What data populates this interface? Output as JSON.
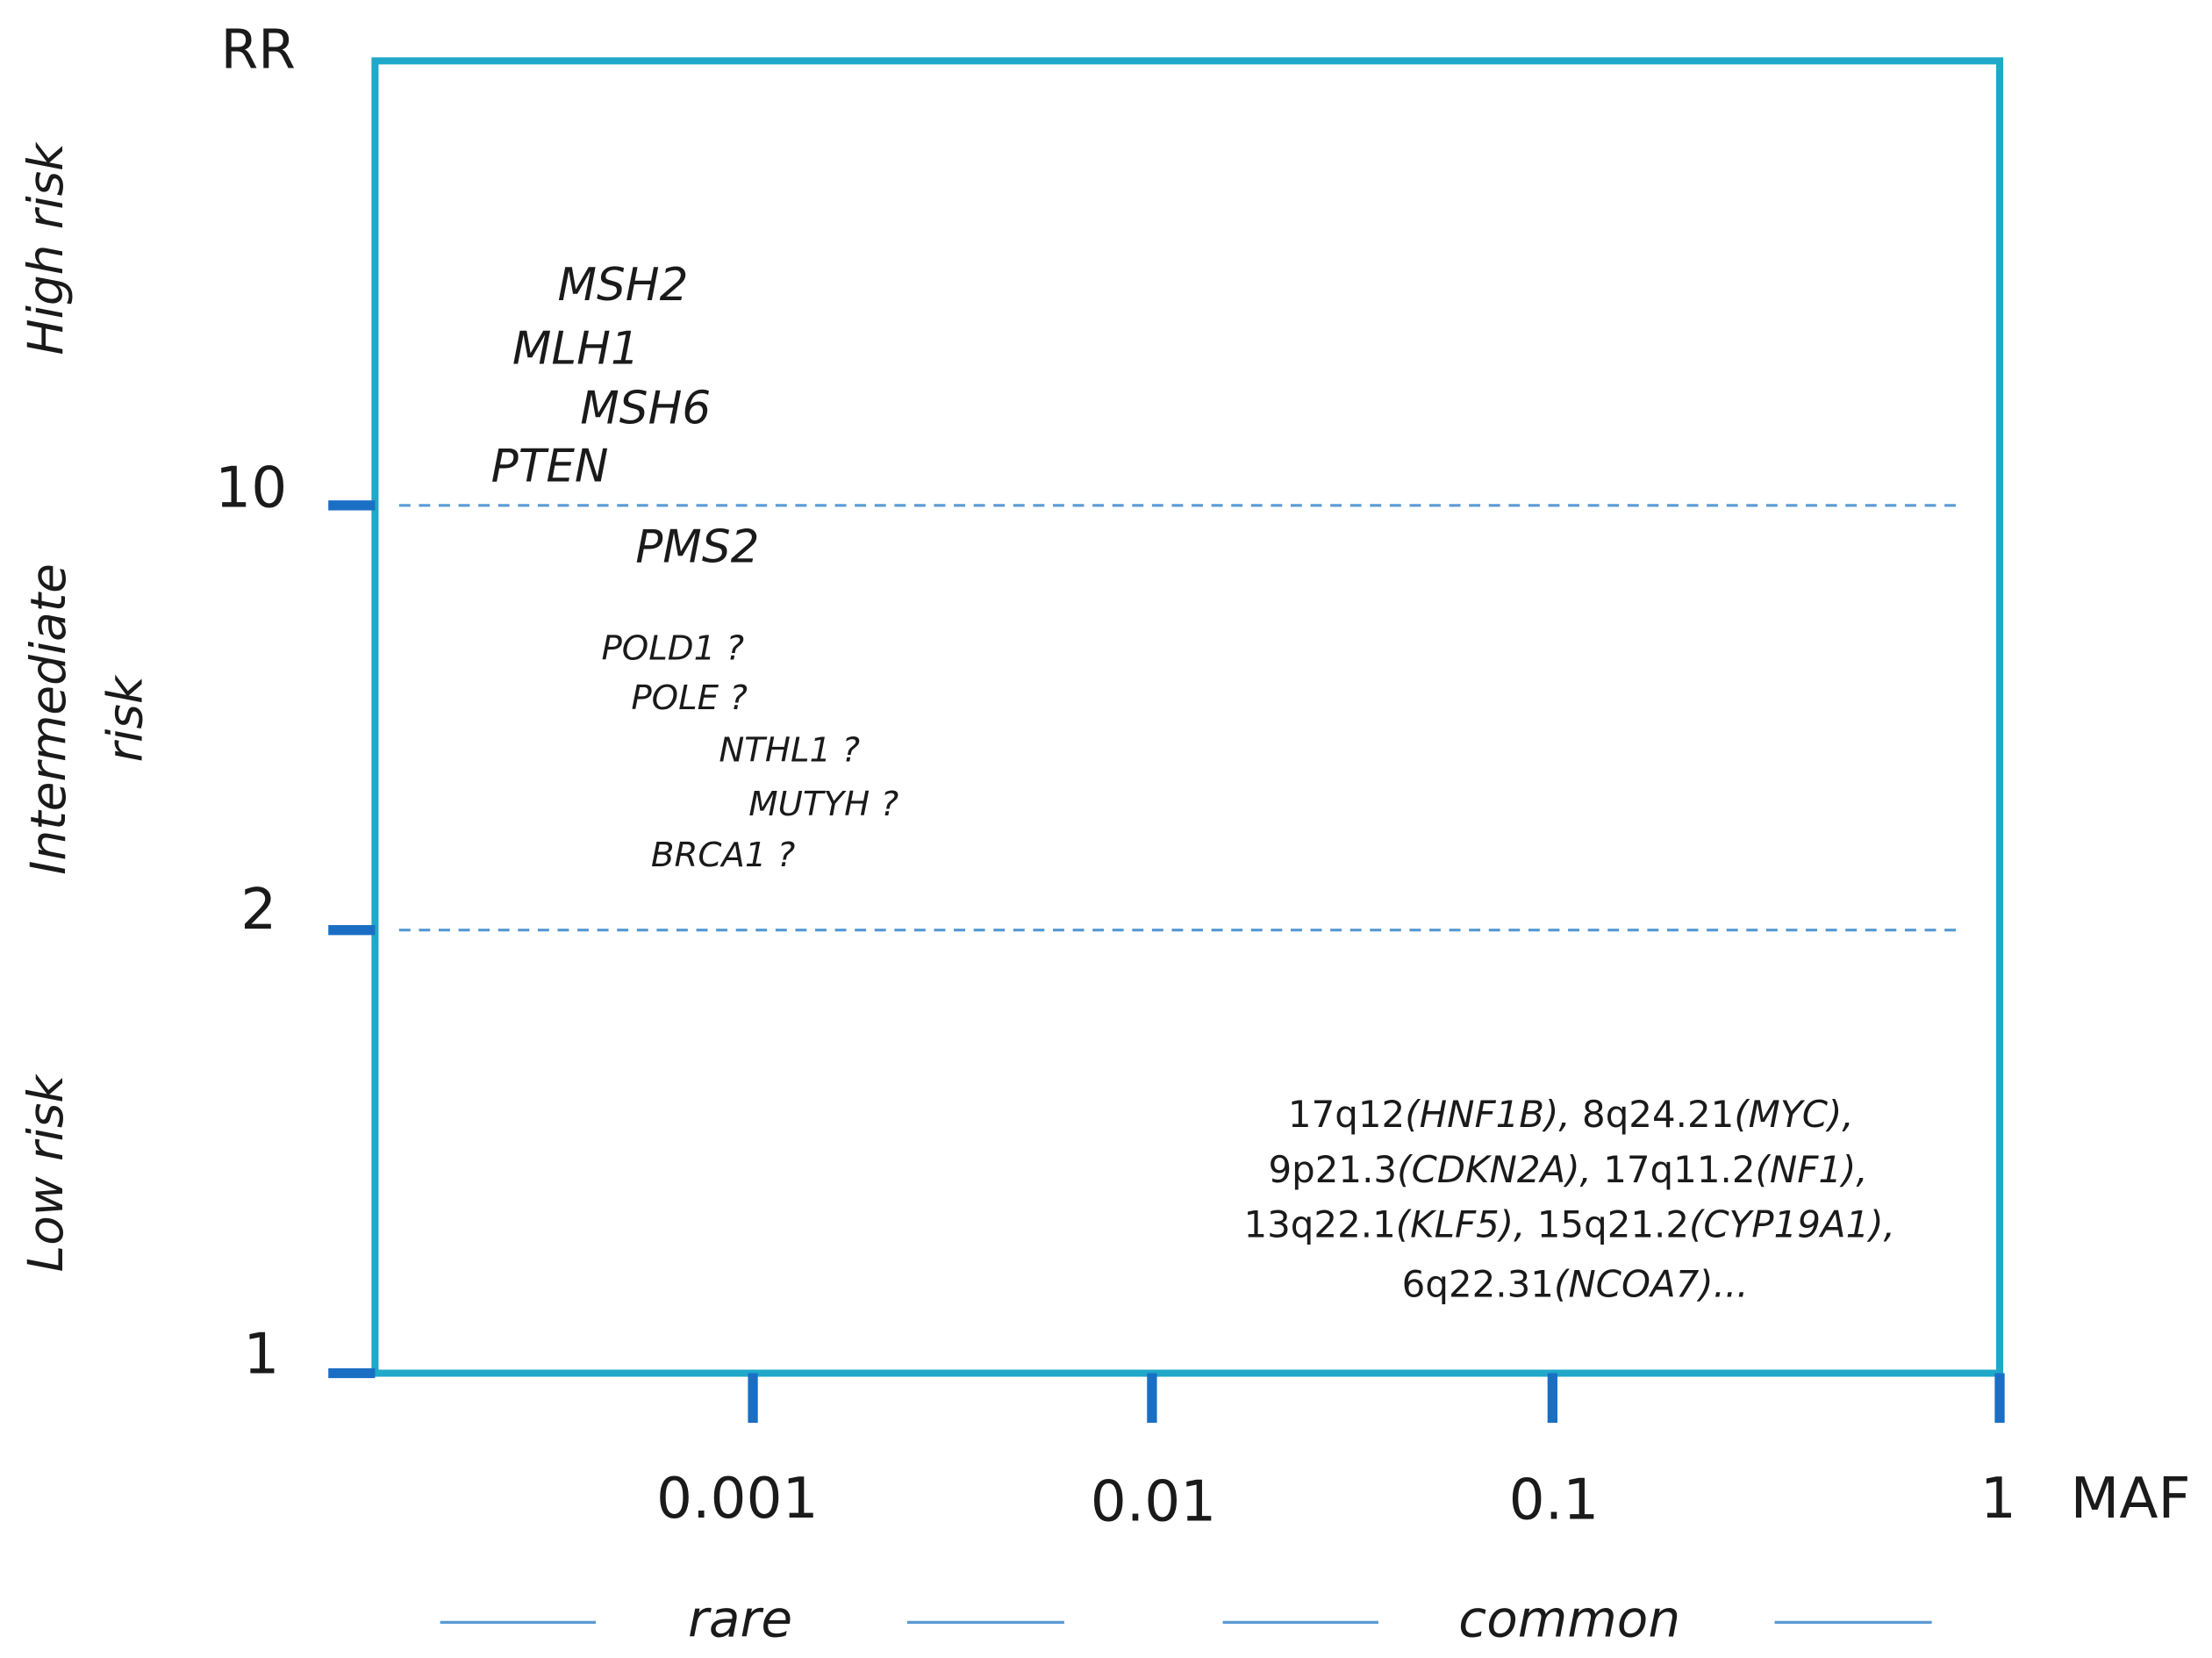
{
  "y_axis": {
    "title": "RR",
    "ticks": [
      "10",
      "2",
      "1"
    ]
  },
  "x_axis": {
    "title": "MAF",
    "ticks": [
      "0.001",
      "0.01",
      "0.1",
      "1"
    ]
  },
  "risk_bands": {
    "high": "High risk",
    "intermediate_line1": "Intermediate",
    "intermediate_line2": "risk",
    "low": "Low risk"
  },
  "high_risk_genes": [
    "MSH2",
    "MLH1",
    "MSH6",
    "PTEN"
  ],
  "intermediate_genes": [
    "PMS2"
  ],
  "uncertain_genes": [
    "POLD1 ?",
    "POLE ?",
    "NTHL1 ?",
    "MUTYH ?",
    "BRCA1 ?"
  ],
  "low_risk_loci": {
    "line1": [
      {
        "pos": "17q12",
        "gene": "(HNF1B),"
      },
      {
        "pos": " 8q24.21",
        "gene": "(MYC),"
      }
    ],
    "line2": [
      {
        "pos": "9p21.3",
        "gene": "(CDKN2A),"
      },
      {
        "pos": " 17q11.2",
        "gene": "(NF1),"
      }
    ],
    "line3": [
      {
        "pos": "13q22.1",
        "gene": "(KLF5),"
      },
      {
        "pos": " 15q21.2",
        "gene": "(CYP19A1),"
      }
    ],
    "line4": [
      {
        "pos": "6q22.31",
        "gene": "(NCOA7)..."
      }
    ]
  },
  "frequency_bands": {
    "rare": "rare",
    "common": "common"
  },
  "colors": {
    "frame": "#1fa8c9",
    "axis_ticks": "#1a6fc4",
    "dashed_lines": "#5a9bd5",
    "band_lines": "#5a9bd5"
  }
}
